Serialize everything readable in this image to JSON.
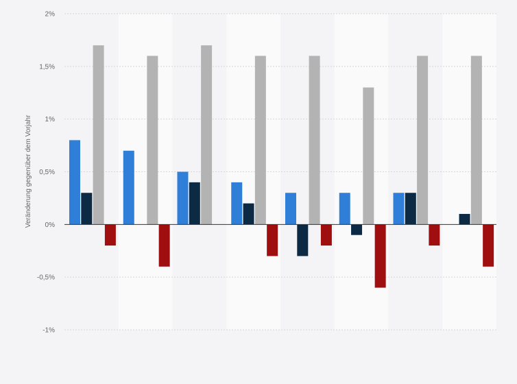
{
  "chart_data": {
    "type": "bar",
    "title": "",
    "xlabel": "",
    "ylabel": "Veränderung gegenüber dem Vorjahr",
    "ylim": [
      -1,
      2
    ],
    "yticks": [
      2,
      1.5,
      1,
      0.5,
      0,
      -0.5,
      -1
    ],
    "ytick_labels": [
      "2%",
      "1,5%",
      "1%",
      "0,5%",
      "0%",
      "-0,5%",
      "-1%"
    ],
    "grid": true,
    "legend": "none",
    "categories": [
      "",
      "",
      "",
      "",
      "",
      "",
      "",
      ""
    ],
    "series": [
      {
        "color": "#2f7ed8",
        "values": [
          0.8,
          0.7,
          0.5,
          0.4,
          0.3,
          0.3,
          0.3,
          0
        ]
      },
      {
        "color": "#0d2a45",
        "values": [
          0.3,
          0,
          0.4,
          0.2,
          -0.3,
          -0.1,
          0.3,
          0.1
        ]
      },
      {
        "color": "#b3b3b3",
        "values": [
          1.7,
          1.6,
          1.7,
          1.6,
          1.6,
          1.3,
          1.6,
          1.6
        ]
      },
      {
        "color": "#a00f0f",
        "values": [
          -0.2,
          -0.4,
          0,
          -0.3,
          -0.2,
          -0.6,
          -0.2,
          -0.4
        ]
      }
    ],
    "band_colors": [
      "#f4f4f6",
      "#fafafa",
      "#f4f4f6",
      "#fafafa"
    ]
  }
}
